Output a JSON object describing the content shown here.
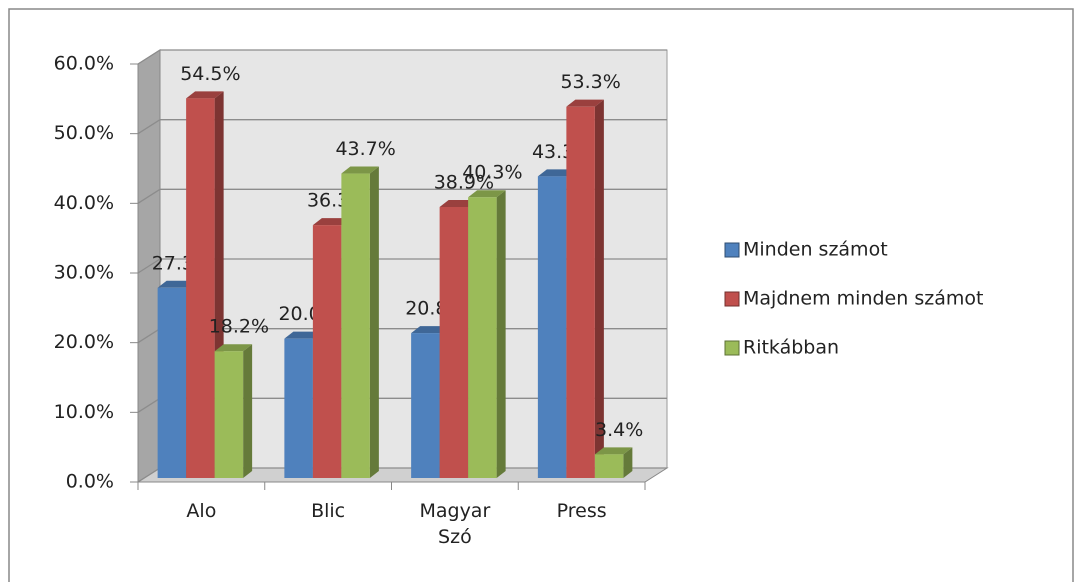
{
  "chart_data": {
    "type": "bar",
    "categories": [
      "Alo",
      "Blic",
      "Magyar Szó",
      "Press"
    ],
    "series": [
      {
        "name": "Minden számot",
        "color": "#4f81bd",
        "values": [
          27.3,
          20.0,
          20.8,
          43.3
        ],
        "value_labels": [
          "27.3%",
          "20.0%",
          "20.8%",
          "43.3%"
        ]
      },
      {
        "name": "Majdnem minden számot",
        "color": "#c0504d",
        "values": [
          54.5,
          36.3,
          38.9,
          53.3
        ],
        "value_labels": [
          "54.5%",
          "36.3%",
          "38.9%",
          "53.3%"
        ]
      },
      {
        "name": "Ritkábban",
        "color": "#9bbb59",
        "values": [
          18.2,
          43.7,
          40.3,
          3.4
        ],
        "value_labels": [
          "18.2%",
          "43.7%",
          "40.3%",
          "3.4%"
        ]
      }
    ],
    "ylim": [
      0,
      60
    ],
    "yticks": [
      {
        "value": 0,
        "label": "0.0%"
      },
      {
        "value": 10,
        "label": "10.0%"
      },
      {
        "value": 20,
        "label": "20.0%"
      },
      {
        "value": 30,
        "label": "30.0%"
      },
      {
        "value": 40,
        "label": "40.0%"
      },
      {
        "value": 50,
        "label": "50.0%"
      },
      {
        "value": 60,
        "label": "60.0%"
      }
    ],
    "grid": true,
    "legend": "right"
  }
}
